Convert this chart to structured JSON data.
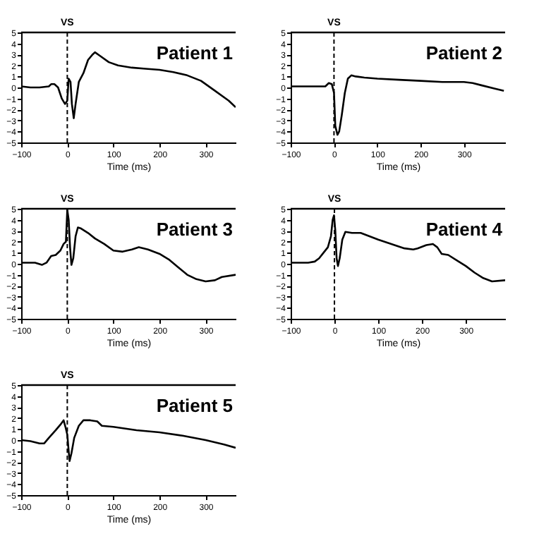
{
  "chart_data": [
    {
      "type": "line",
      "title": "Patient 1",
      "xlabel": "Time (ms)",
      "xlim": [
        -100,
        365
      ],
      "xticks": [
        -100,
        0,
        100,
        200,
        300
      ],
      "ylim": [
        -5,
        5
      ],
      "yticks": [
        -5,
        -4,
        -3,
        -2,
        -1,
        0,
        1,
        2,
        3,
        4,
        5
      ],
      "ref_lines": [
        {
          "axis": "x",
          "value": 0,
          "label": "VS",
          "line_style": "dashed"
        }
      ],
      "series": [
        {
          "color": "#000000",
          "x": [
            -100,
            -80,
            -60,
            -40,
            -35,
            -28,
            -20,
            -12,
            -5,
            0,
            3,
            7,
            10,
            14,
            18,
            25,
            35,
            45,
            55,
            60,
            70,
            90,
            110,
            140,
            170,
            200,
            230,
            260,
            290,
            320,
            350,
            365
          ],
          "values": [
            0.1,
            0.0,
            0.0,
            0.1,
            0.3,
            0.3,
            0,
            -1.0,
            -1.5,
            -1.2,
            0.8,
            0.5,
            -1.5,
            -2.8,
            -1.5,
            0.5,
            1.3,
            2.5,
            3.0,
            3.2,
            2.9,
            2.3,
            2.0,
            1.8,
            1.7,
            1.6,
            1.4,
            1.1,
            0.6,
            -0.3,
            -1.2,
            -1.8
          ]
        }
      ]
    },
    {
      "type": "line",
      "title": "Patient 2",
      "xlabel": "Time (ms)",
      "xlim": [
        -100,
        395
      ],
      "xticks": [
        -100,
        0,
        100,
        200,
        300
      ],
      "ylim": [
        -5,
        5
      ],
      "yticks": [
        -5,
        -4,
        -3,
        -2,
        -1,
        0,
        1,
        2,
        3,
        4,
        5
      ],
      "ref_lines": [
        {
          "axis": "x",
          "value": 0,
          "label": "VS",
          "line_style": "dashed"
        }
      ],
      "series": [
        {
          "color": "#000000",
          "x": [
            -100,
            -60,
            -20,
            -12,
            -5,
            0,
            3,
            8,
            12,
            18,
            25,
            32,
            40,
            50,
            70,
            100,
            150,
            200,
            250,
            300,
            320,
            340,
            370,
            392
          ],
          "values": [
            0.1,
            0.1,
            0.1,
            0.4,
            0.3,
            -0.5,
            -3.5,
            -4.3,
            -4.0,
            -2.5,
            -0.5,
            0.8,
            1.1,
            1.0,
            0.9,
            0.8,
            0.7,
            0.6,
            0.5,
            0.5,
            0.4,
            0.2,
            -0.1,
            -0.3
          ]
        }
      ]
    },
    {
      "type": "line",
      "title": "Patient 3",
      "xlabel": "Time (ms)",
      "xlim": [
        -100,
        365
      ],
      "xticks": [
        -100,
        0,
        100,
        200,
        300
      ],
      "ylim": [
        -5,
        5
      ],
      "yticks": [
        -5,
        -4,
        -3,
        -2,
        -1,
        0,
        1,
        2,
        3,
        4,
        5
      ],
      "ref_lines": [
        {
          "axis": "x",
          "value": 0,
          "label": "VS",
          "line_style": "dashed"
        }
      ],
      "series": [
        {
          "color": "#000000",
          "x": [
            -100,
            -70,
            -55,
            -45,
            -35,
            -25,
            -15,
            -8,
            -3,
            0,
            3,
            6,
            9,
            13,
            18,
            23,
            30,
            45,
            60,
            80,
            100,
            120,
            140,
            155,
            175,
            200,
            220,
            240,
            260,
            280,
            300,
            320,
            335,
            365
          ],
          "values": [
            0.1,
            0.1,
            -0.1,
            0.1,
            0.7,
            0.8,
            1.2,
            1.8,
            2.0,
            4.9,
            4.0,
            1.5,
            -0.1,
            0.5,
            2.5,
            3.3,
            3.2,
            2.8,
            2.3,
            1.8,
            1.2,
            1.1,
            1.3,
            1.5,
            1.3,
            0.9,
            0.4,
            -0.3,
            -1.0,
            -1.4,
            -1.6,
            -1.5,
            -1.2,
            -1.0
          ]
        }
      ]
    },
    {
      "type": "line",
      "title": "Patient 4",
      "xlabel": "Time (ms)",
      "xlim": [
        -100,
        390
      ],
      "xticks": [
        -100,
        0,
        100,
        200,
        300
      ],
      "ylim": [
        -5,
        5
      ],
      "yticks": [
        -5,
        -4,
        -3,
        -2,
        -1,
        0,
        1,
        2,
        3,
        4,
        5
      ],
      "ref_lines": [
        {
          "axis": "x",
          "value": 0,
          "label": "VS",
          "line_style": "dashed"
        }
      ],
      "series": [
        {
          "color": "#000000",
          "x": [
            -100,
            -60,
            -45,
            -35,
            -25,
            -15,
            -8,
            -4,
            -1,
            2,
            5,
            8,
            12,
            18,
            25,
            40,
            60,
            80,
            100,
            130,
            160,
            180,
            190,
            210,
            225,
            235,
            245,
            260,
            280,
            300,
            320,
            340,
            360,
            390
          ],
          "values": [
            0.1,
            0.1,
            0.2,
            0.5,
            1.0,
            1.5,
            2.5,
            4.0,
            4.4,
            3.0,
            0.5,
            -0.2,
            0.5,
            2.2,
            2.9,
            2.8,
            2.8,
            2.5,
            2.2,
            1.8,
            1.4,
            1.3,
            1.4,
            1.7,
            1.8,
            1.5,
            0.9,
            0.8,
            0.3,
            -0.2,
            -0.8,
            -1.3,
            -1.6,
            -1.5
          ]
        }
      ]
    },
    {
      "type": "line",
      "title": "Patient 5",
      "xlabel": "Time (ms)",
      "xlim": [
        -100,
        365
      ],
      "xticks": [
        -100,
        0,
        100,
        200,
        300
      ],
      "ylim": [
        -5,
        5
      ],
      "yticks": [
        -5,
        -4,
        -3,
        -2,
        -1,
        0,
        1,
        2,
        3,
        4,
        5
      ],
      "ref_lines": [
        {
          "axis": "x",
          "value": 0,
          "label": "VS",
          "line_style": "dashed"
        }
      ],
      "series": [
        {
          "color": "#000000",
          "x": [
            -100,
            -80,
            -60,
            -50,
            -40,
            -25,
            -15,
            -8,
            -4,
            0,
            3,
            5,
            9,
            15,
            25,
            35,
            50,
            65,
            75,
            100,
            150,
            200,
            250,
            300,
            340,
            365
          ],
          "values": [
            0.0,
            -0.1,
            -0.3,
            -0.3,
            0.2,
            0.9,
            1.4,
            1.8,
            1.2,
            0.5,
            -1.0,
            -1.9,
            -1.2,
            0.2,
            1.3,
            1.8,
            1.8,
            1.7,
            1.3,
            1.2,
            0.9,
            0.7,
            0.4,
            0.0,
            -0.4,
            -0.7
          ]
        }
      ]
    }
  ]
}
